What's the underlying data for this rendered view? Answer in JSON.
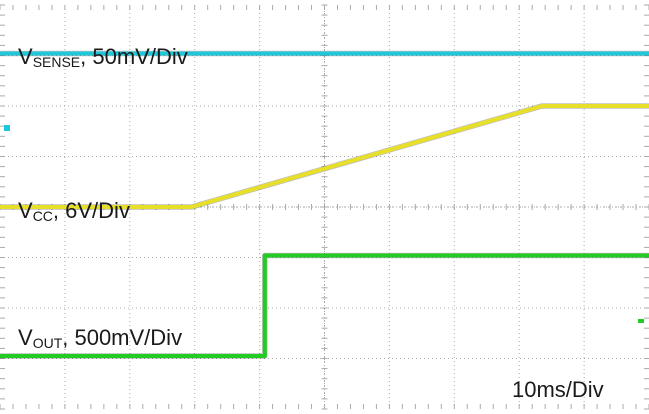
{
  "chart_data": {
    "type": "line",
    "title": "",
    "xlabel": "",
    "ylabel": "",
    "timebase_label": "10ms/Div",
    "divisions": {
      "x": 10,
      "y": 8
    },
    "grid": true,
    "xlim": [
      0,
      10
    ],
    "ylim": [
      0,
      8
    ],
    "series": [
      {
        "name": "VSENSE",
        "label_main": "V",
        "label_sub": "SENSE",
        "label_rest": ", 50mV/Div",
        "color": "#1ec8d8",
        "x": [
          0,
          10
        ],
        "y": [
          7.04,
          7.04
        ]
      },
      {
        "name": "VCC",
        "label_main": "V",
        "label_sub": "CC",
        "label_rest": ", 6V/Div",
        "color": "#e8e028",
        "x": [
          0,
          2.95,
          8.35,
          10
        ],
        "y": [
          4.0,
          4.0,
          6.0,
          6.0
        ]
      },
      {
        "name": "VOUT",
        "label_main": "V",
        "label_sub": "OUT",
        "label_rest": ", 500mV/Div",
        "color": "#22cc22",
        "x": [
          0,
          4.08,
          4.08,
          10
        ],
        "y": [
          1.05,
          1.05,
          3.04,
          3.04
        ]
      }
    ],
    "colors": {
      "grid": "#aaaaaa",
      "ground_marker": "#1ec8d8"
    }
  }
}
